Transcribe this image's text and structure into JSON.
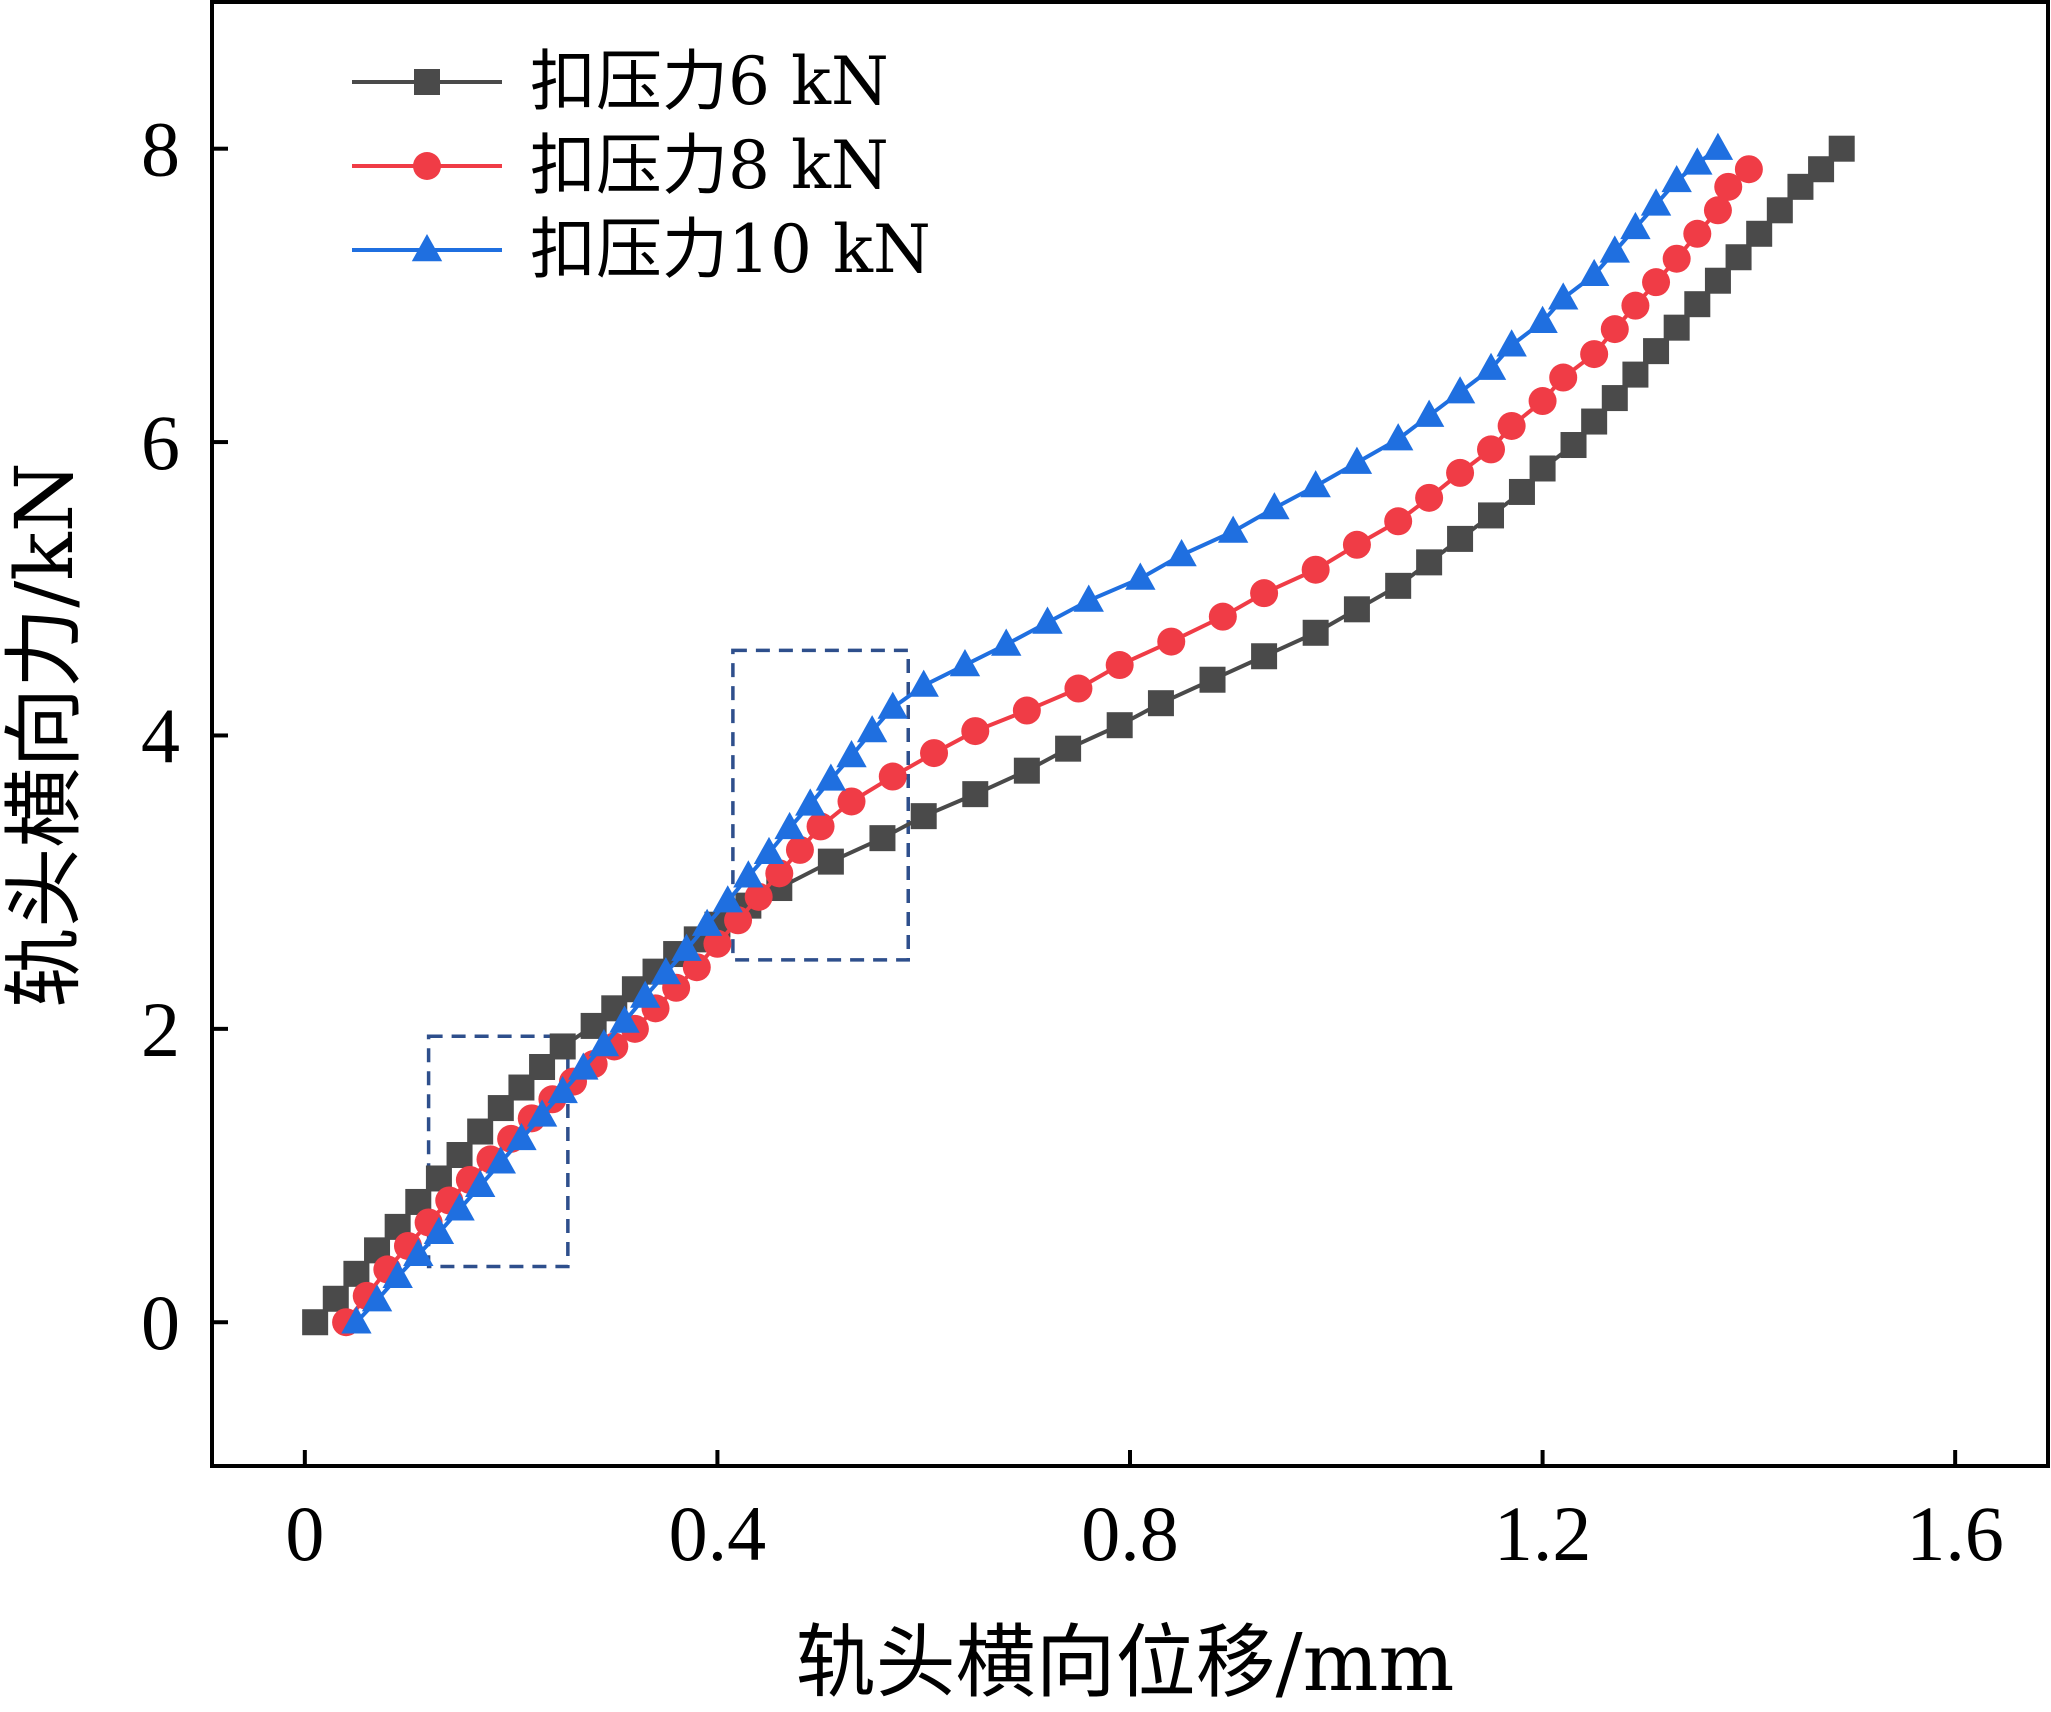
{
  "chart_data": {
    "type": "line",
    "xlabel": "轨头横向位移/mm",
    "ylabel": "轨头横向力/kN",
    "xlim": [
      -0.09,
      1.69
    ],
    "ylim": [
      -0.98,
      9.0
    ],
    "xticks": [
      0,
      0.4,
      0.8,
      1.2,
      1.6
    ],
    "yticks": [
      0,
      2,
      4,
      6,
      8
    ],
    "xtick_labels": [
      "0",
      "0.4",
      "0.8",
      "1.2",
      "1.6"
    ],
    "ytick_labels": [
      "0",
      "2",
      "4",
      "6",
      "8"
    ],
    "grid": false,
    "legend_position": "top-left",
    "series": [
      {
        "name": "扣压力6 kN",
        "color": "#4a4a4a",
        "marker": "square",
        "x": [
          0.01,
          0.03,
          0.05,
          0.07,
          0.09,
          0.11,
          0.13,
          0.15,
          0.17,
          0.19,
          0.21,
          0.23,
          0.25,
          0.28,
          0.3,
          0.32,
          0.34,
          0.36,
          0.38,
          0.4,
          0.43,
          0.46,
          0.51,
          0.56,
          0.6,
          0.65,
          0.7,
          0.74,
          0.79,
          0.83,
          0.88,
          0.93,
          0.98,
          1.02,
          1.06,
          1.09,
          1.12,
          1.15,
          1.18,
          1.2,
          1.23,
          1.25,
          1.27,
          1.29,
          1.31,
          1.33,
          1.35,
          1.37,
          1.39,
          1.41,
          1.43,
          1.45,
          1.47,
          1.49
        ],
        "y": [
          0,
          0.16,
          0.33,
          0.49,
          0.65,
          0.82,
          0.98,
          1.14,
          1.3,
          1.46,
          1.6,
          1.74,
          1.88,
          2.02,
          2.14,
          2.27,
          2.39,
          2.51,
          2.61,
          2.71,
          2.84,
          2.96,
          3.14,
          3.3,
          3.45,
          3.6,
          3.76,
          3.91,
          4.07,
          4.22,
          4.38,
          4.54,
          4.7,
          4.86,
          5.02,
          5.18,
          5.34,
          5.5,
          5.66,
          5.82,
          5.98,
          6.14,
          6.3,
          6.46,
          6.62,
          6.78,
          6.94,
          7.1,
          7.26,
          7.42,
          7.58,
          7.74,
          7.86,
          8.0
        ]
      },
      {
        "name": "扣压力8 kN",
        "color": "#f03c46",
        "marker": "circle",
        "x": [
          0.04,
          0.06,
          0.08,
          0.1,
          0.12,
          0.14,
          0.16,
          0.18,
          0.2,
          0.22,
          0.24,
          0.26,
          0.28,
          0.3,
          0.32,
          0.34,
          0.36,
          0.38,
          0.4,
          0.42,
          0.44,
          0.46,
          0.48,
          0.5,
          0.53,
          0.57,
          0.61,
          0.65,
          0.7,
          0.75,
          0.79,
          0.84,
          0.89,
          0.93,
          0.98,
          1.02,
          1.06,
          1.09,
          1.12,
          1.15,
          1.17,
          1.2,
          1.22,
          1.25,
          1.27,
          1.29,
          1.31,
          1.33,
          1.35,
          1.37,
          1.38,
          1.4
        ],
        "y": [
          0,
          0.18,
          0.36,
          0.52,
          0.68,
          0.83,
          0.97,
          1.11,
          1.25,
          1.39,
          1.52,
          1.64,
          1.76,
          1.88,
          2.0,
          2.14,
          2.28,
          2.42,
          2.58,
          2.74,
          2.9,
          3.06,
          3.22,
          3.38,
          3.55,
          3.72,
          3.88,
          4.03,
          4.17,
          4.32,
          4.48,
          4.64,
          4.81,
          4.97,
          5.13,
          5.3,
          5.46,
          5.62,
          5.79,
          5.95,
          6.11,
          6.28,
          6.44,
          6.6,
          6.77,
          6.93,
          7.09,
          7.25,
          7.42,
          7.58,
          7.74,
          7.86
        ]
      },
      {
        "name": "扣压力10 kN",
        "color": "#1f6fe0",
        "marker": "triangle",
        "x": [
          0.05,
          0.07,
          0.09,
          0.11,
          0.13,
          0.15,
          0.17,
          0.19,
          0.21,
          0.23,
          0.25,
          0.27,
          0.29,
          0.31,
          0.33,
          0.35,
          0.37,
          0.39,
          0.41,
          0.43,
          0.45,
          0.47,
          0.49,
          0.51,
          0.53,
          0.55,
          0.57,
          0.6,
          0.64,
          0.68,
          0.72,
          0.76,
          0.81,
          0.85,
          0.9,
          0.94,
          0.98,
          1.02,
          1.06,
          1.09,
          1.12,
          1.15,
          1.17,
          1.2,
          1.22,
          1.25,
          1.27,
          1.29,
          1.31,
          1.33,
          1.35,
          1.37
        ],
        "y": [
          0,
          0.15,
          0.31,
          0.46,
          0.61,
          0.77,
          0.93,
          1.09,
          1.25,
          1.41,
          1.57,
          1.73,
          1.89,
          2.05,
          2.22,
          2.38,
          2.54,
          2.71,
          2.87,
          3.04,
          3.2,
          3.37,
          3.53,
          3.7,
          3.86,
          4.03,
          4.19,
          4.34,
          4.48,
          4.62,
          4.77,
          4.92,
          5.07,
          5.23,
          5.39,
          5.55,
          5.7,
          5.86,
          6.02,
          6.18,
          6.34,
          6.5,
          6.66,
          6.82,
          6.98,
          7.14,
          7.3,
          7.46,
          7.62,
          7.78,
          7.9,
          8.0
        ]
      }
    ],
    "annotations": [
      {
        "type": "dashed-box",
        "color": "#2e4f8c",
        "x0": 0.12,
        "x1": 0.255,
        "y0": 0.38,
        "y1": 1.95
      },
      {
        "type": "dashed-box",
        "color": "#2e4f8c",
        "x0": 0.415,
        "x1": 0.585,
        "y0": 2.47,
        "y1": 4.58
      }
    ]
  }
}
